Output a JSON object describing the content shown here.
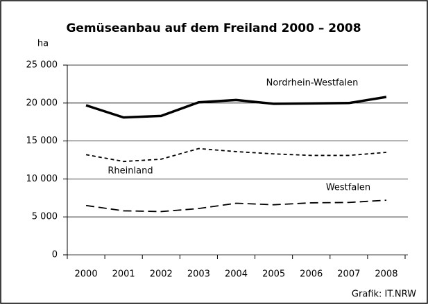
{
  "chart_data": {
    "type": "line",
    "title": "Gemüseanbau auf dem Freiland 2000 – 2008",
    "y_label": "ha",
    "source": "Grafik: IT.NRW",
    "categories": [
      "2000",
      "2001",
      "2002",
      "2003",
      "2004",
      "2005",
      "2006",
      "2007",
      "2008"
    ],
    "series": [
      {
        "name": "Nordrhein-Westfalen",
        "color": "#000000",
        "values": [
          19700,
          18100,
          18300,
          20100,
          20400,
          19900,
          19950,
          20000,
          20800
        ]
      },
      {
        "name": "Rheinland",
        "color": "#000000",
        "values": [
          13200,
          12300,
          12600,
          14000,
          13600,
          13300,
          13100,
          13100,
          13500
        ]
      },
      {
        "name": "Westfalen",
        "color": "#000000",
        "values": [
          6500,
          5800,
          5700,
          6100,
          6800,
          6600,
          6850,
          6900,
          7200
        ]
      }
    ],
    "ylim": [
      0,
      25000
    ],
    "yticks": [
      {
        "value": 0,
        "label": "0"
      },
      {
        "value": 5000,
        "label": "5 000"
      },
      {
        "value": 10000,
        "label": "10 000"
      },
      {
        "value": 15000,
        "label": "15 000"
      },
      {
        "value": 20000,
        "label": "20 000"
      },
      {
        "value": 25000,
        "label": "25 000"
      }
    ],
    "grid": true
  }
}
